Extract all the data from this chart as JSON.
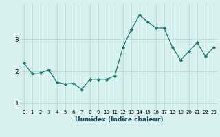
{
  "x": [
    0,
    1,
    2,
    3,
    4,
    5,
    6,
    7,
    8,
    9,
    10,
    11,
    12,
    13,
    14,
    15,
    16,
    17,
    18,
    19,
    20,
    21,
    22,
    23
  ],
  "y": [
    2.25,
    1.93,
    1.95,
    2.05,
    1.65,
    1.6,
    1.62,
    1.43,
    1.75,
    1.75,
    1.75,
    1.85,
    2.75,
    3.3,
    3.75,
    3.55,
    3.35,
    3.35,
    2.75,
    2.35,
    2.62,
    2.9,
    2.47,
    2.75
  ],
  "line_color": "#1a7a6e",
  "marker": "D",
  "marker_size": 2.2,
  "bg_color": "#d8f0ee",
  "grid_color": "#b8d8d4",
  "xlabel": "Humidex (Indice chaleur)",
  "yticks": [
    1,
    2,
    3
  ],
  "ylim": [
    0.8,
    4.1
  ],
  "xlim": [
    -0.5,
    23.5
  ],
  "xtick_fontsize": 5.0,
  "ytick_fontsize": 6.5,
  "xlabel_fontsize": 6.5,
  "linewidth": 0.9
}
